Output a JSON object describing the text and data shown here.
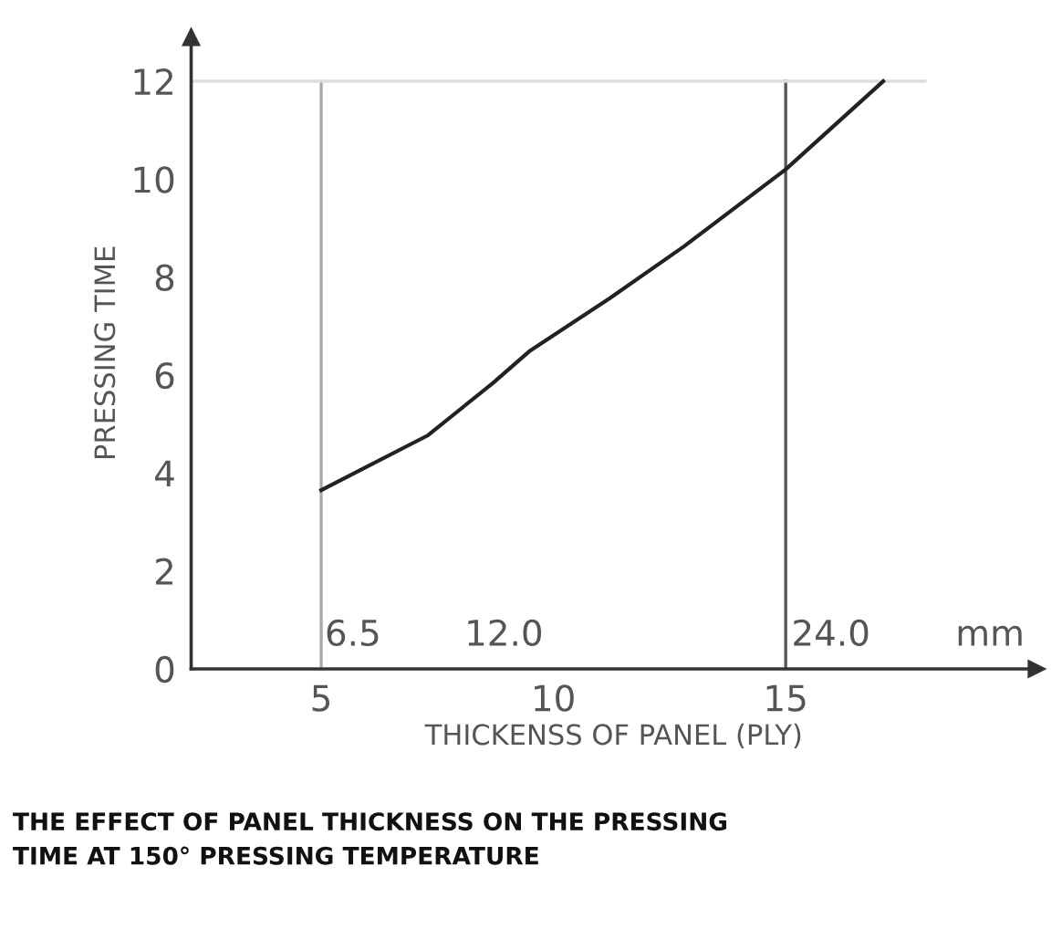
{
  "chart_data": {
    "type": "line",
    "title": "THE EFFECT OF PANEL THICKNESS ON THE PRESSING\nTIME AT 150° PRESSING TEMPERATURE",
    "xlabel": "THICKENSS OF PANEL (PLY)",
    "ylabel": "PRESSING TIME",
    "xlim": [
      2.2,
      20.4
    ],
    "ylim": [
      0,
      12.9
    ],
    "xticks": [
      5,
      10,
      15
    ],
    "yticks": [
      0,
      2,
      4,
      6,
      8,
      10,
      12
    ],
    "series": [
      {
        "color": "#222222",
        "x": [
          5,
          7.3,
          8.7,
          9.5,
          11.2,
          12.8,
          15,
          17.1
        ],
        "values": [
          3.65,
          4.77,
          5.84,
          6.5,
          7.56,
          8.62,
          10.2,
          12.0
        ]
      }
    ],
    "ref_lines": [
      {
        "axis": "x",
        "value": 5,
        "label": null,
        "color": "#aaaaaa"
      },
      {
        "axis": "x",
        "value": 15,
        "label": null,
        "color": "#555555"
      },
      {
        "axis": "y",
        "value": 12,
        "label": null,
        "color": "#dddddd"
      }
    ],
    "annotations": [
      "6.5",
      "12.0",
      "24.0",
      "mm"
    ],
    "grid": false,
    "legend": false,
    "line_style": "solid",
    "marker": "none"
  }
}
